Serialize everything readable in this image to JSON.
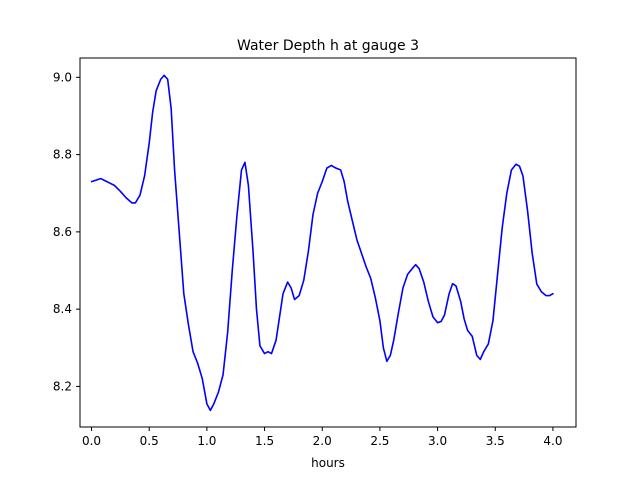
{
  "chart_data": {
    "type": "line",
    "title": "Water Depth h at gauge 3",
    "xlabel": "hours",
    "ylabel": "",
    "xlim": [
      -0.1,
      4.2
    ],
    "ylim": [
      8.095,
      9.05
    ],
    "xticks": [
      0.0,
      0.5,
      1.0,
      1.5,
      2.0,
      2.5,
      3.0,
      3.5,
      4.0
    ],
    "xtick_labels": [
      "0.0",
      "0.5",
      "1.0",
      "1.5",
      "2.0",
      "2.5",
      "3.0",
      "3.5",
      "4.0"
    ],
    "yticks": [
      8.2,
      8.4,
      8.6,
      8.8,
      9.0
    ],
    "ytick_labels": [
      "8.2",
      "8.4",
      "8.6",
      "8.8",
      "9.0"
    ],
    "grid": false,
    "series": [
      {
        "color": "#0000ff",
        "x": [
          0.0,
          0.05,
          0.08,
          0.12,
          0.16,
          0.2,
          0.25,
          0.3,
          0.35,
          0.38,
          0.42,
          0.46,
          0.5,
          0.53,
          0.56,
          0.6,
          0.63,
          0.66,
          0.69,
          0.72,
          0.76,
          0.8,
          0.84,
          0.88,
          0.92,
          0.96,
          1.0,
          1.03,
          1.06,
          1.1,
          1.14,
          1.18,
          1.22,
          1.26,
          1.3,
          1.33,
          1.36,
          1.4,
          1.43,
          1.46,
          1.5,
          1.53,
          1.56,
          1.6,
          1.63,
          1.66,
          1.7,
          1.73,
          1.76,
          1.8,
          1.84,
          1.88,
          1.92,
          1.96,
          2.0,
          2.04,
          2.08,
          2.1,
          2.12,
          2.16,
          2.19,
          2.22,
          2.26,
          2.3,
          2.34,
          2.38,
          2.42,
          2.46,
          2.5,
          2.53,
          2.56,
          2.59,
          2.62,
          2.66,
          2.7,
          2.74,
          2.78,
          2.81,
          2.84,
          2.88,
          2.92,
          2.96,
          3.0,
          3.03,
          3.06,
          3.1,
          3.13,
          3.16,
          3.2,
          3.23,
          3.26,
          3.3,
          3.34,
          3.37,
          3.4,
          3.44,
          3.48,
          3.52,
          3.56,
          3.6,
          3.64,
          3.68,
          3.71,
          3.74,
          3.78,
          3.82,
          3.86,
          3.9,
          3.94,
          3.97,
          4.0
        ],
        "y": [
          8.73,
          8.735,
          8.738,
          8.732,
          8.726,
          8.72,
          8.705,
          8.688,
          8.675,
          8.675,
          8.695,
          8.745,
          8.83,
          8.91,
          8.965,
          8.995,
          9.005,
          8.995,
          8.92,
          8.76,
          8.6,
          8.44,
          8.36,
          8.29,
          8.26,
          8.22,
          8.155,
          8.138,
          8.155,
          8.185,
          8.23,
          8.34,
          8.5,
          8.64,
          8.76,
          8.78,
          8.72,
          8.55,
          8.4,
          8.305,
          8.285,
          8.29,
          8.285,
          8.32,
          8.38,
          8.44,
          8.47,
          8.455,
          8.425,
          8.435,
          8.475,
          8.55,
          8.645,
          8.7,
          8.73,
          8.765,
          8.772,
          8.768,
          8.765,
          8.76,
          8.73,
          8.68,
          8.63,
          8.58,
          8.545,
          8.51,
          8.48,
          8.43,
          8.37,
          8.3,
          8.265,
          8.28,
          8.32,
          8.39,
          8.455,
          8.49,
          8.505,
          8.515,
          8.505,
          8.47,
          8.42,
          8.38,
          8.365,
          8.368,
          8.385,
          8.44,
          8.466,
          8.46,
          8.42,
          8.375,
          8.345,
          8.33,
          8.28,
          8.27,
          8.29,
          8.31,
          8.37,
          8.49,
          8.61,
          8.7,
          8.76,
          8.775,
          8.77,
          8.745,
          8.655,
          8.545,
          8.465,
          8.445,
          8.435,
          8.435,
          8.44
        ]
      }
    ]
  }
}
